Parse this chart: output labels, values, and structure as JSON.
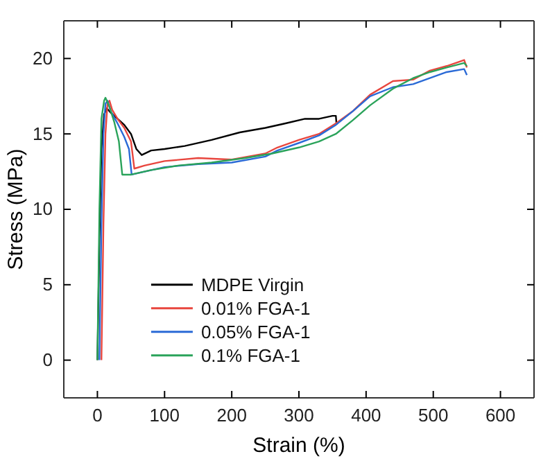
{
  "chart_data": {
    "type": "line",
    "xlabel": "Strain (%)",
    "ylabel": "Stress (MPa)",
    "xlim": [
      -50,
      650
    ],
    "ylim": [
      -2.5,
      22.5
    ],
    "xticks": [
      0,
      100,
      200,
      300,
      400,
      500,
      600
    ],
    "yticks": [
      0,
      5,
      10,
      15,
      20
    ],
    "legend": "bottom left",
    "line_style": "solid",
    "marker": "none",
    "grid": false,
    "series": [
      {
        "name": "MDPE Virgin",
        "color": "#000000",
        "x": [
          0,
          3,
          6,
          10,
          14,
          20,
          30,
          40,
          50,
          58,
          66,
          80,
          100,
          130,
          170,
          212,
          250,
          280,
          309,
          330,
          350,
          355,
          356
        ],
        "values": [
          0,
          8,
          14,
          16.3,
          16.7,
          16.4,
          16,
          15.6,
          15,
          14,
          13.6,
          13.9,
          14,
          14.2,
          14.6,
          15.1,
          15.4,
          15.7,
          16,
          16,
          16.2,
          16.2,
          15.6
        ]
      },
      {
        "name": "0.01% FGA-1",
        "color": "#e8463e",
        "x": [
          6,
          9,
          12,
          15,
          18,
          22,
          30,
          40,
          50,
          55,
          70,
          100,
          150,
          200,
          250,
          268,
          300,
          330,
          355,
          380,
          406,
          440,
          470,
          495,
          520,
          546,
          550
        ],
        "values": [
          0,
          9,
          15,
          17,
          17.2,
          16.6,
          16,
          15.4,
          14.5,
          12.7,
          12.9,
          13.2,
          13.4,
          13.3,
          13.7,
          14.1,
          14.6,
          15,
          15.7,
          16.5,
          17.6,
          18.5,
          18.6,
          19.2,
          19.5,
          19.9,
          19.4
        ]
      },
      {
        "name": "0.05% FGA-1",
        "color": "#2a6ad6",
        "x": [
          3,
          6,
          9,
          12,
          15,
          20,
          30,
          40,
          47,
          51,
          70,
          100,
          150,
          200,
          250,
          268,
          300,
          330,
          355,
          380,
          406,
          440,
          470,
          495,
          520,
          546,
          550
        ],
        "values": [
          0,
          9,
          15,
          17,
          17.2,
          16.5,
          15.7,
          14.8,
          14,
          12.3,
          12.5,
          12.8,
          13,
          13.1,
          13.5,
          13.9,
          14.4,
          14.9,
          15.6,
          16.5,
          17.5,
          18.1,
          18.3,
          18.7,
          19.1,
          19.3,
          18.9
        ]
      },
      {
        "name": "0.1% FGA-1",
        "color": "#2aa35a",
        "x": [
          0,
          3,
          6,
          10,
          12,
          18,
          25,
          32,
          37,
          50,
          80,
          120,
          170,
          220,
          260,
          300,
          330,
          355,
          380,
          406,
          440,
          470,
          495,
          520,
          546,
          550
        ],
        "values": [
          0,
          10,
          16,
          17.2,
          17.4,
          16.8,
          15.8,
          14.5,
          12.3,
          12.3,
          12.6,
          12.9,
          13.1,
          13.4,
          13.7,
          14.1,
          14.5,
          15,
          15.9,
          16.9,
          18,
          18.7,
          19.1,
          19.4,
          19.7,
          19.5
        ]
      }
    ]
  }
}
